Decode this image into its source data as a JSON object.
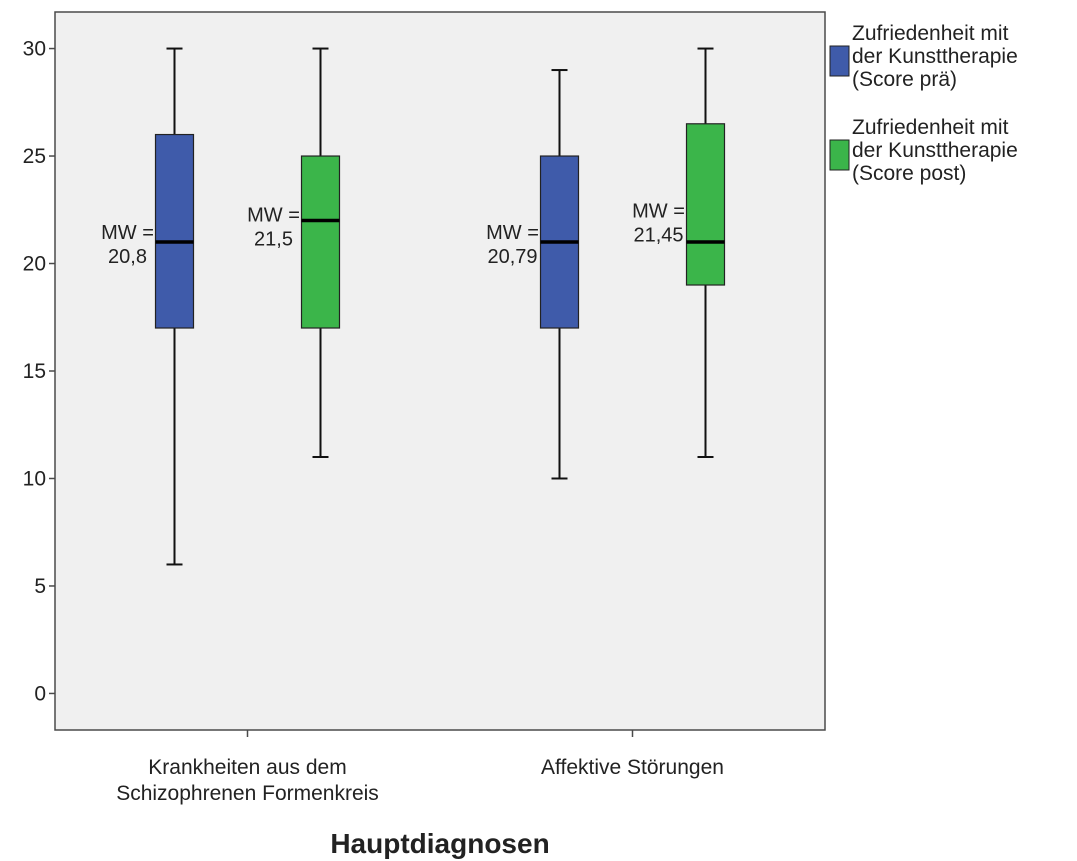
{
  "chart_data": {
    "type": "boxplot",
    "xlabel": "Hauptdiagnosen",
    "ylabel": "",
    "ylim": [
      -1.7,
      31.7
    ],
    "yticks": [
      0,
      5,
      10,
      15,
      20,
      25,
      30
    ],
    "grid": false,
    "legend_position": "right",
    "categories": [
      [
        "Krankheiten aus dem",
        "Schizophrenen Formenkreis"
      ],
      [
        "Affektive Störungen"
      ]
    ],
    "series": [
      {
        "name": [
          "Zufriedenheit mit",
          "der Kunsttherapie",
          "(Score prä)"
        ],
        "color": "#3F5BAA",
        "boxes": [
          {
            "min": 6,
            "q1": 17,
            "median": 21,
            "q3": 26,
            "max": 30
          },
          {
            "min": 10,
            "q1": 17,
            "median": 21,
            "q3": 25,
            "max": 29
          }
        ]
      },
      {
        "name": [
          "Zufriedenheit mit",
          "der Kunsttherapie",
          "(Score post)"
        ],
        "color": "#3BB54A",
        "boxes": [
          {
            "min": 11,
            "q1": 17,
            "median": 22,
            "q3": 25,
            "max": 30
          },
          {
            "min": 11,
            "q1": 19,
            "median": 21,
            "q3": 26.5,
            "max": 30
          }
        ]
      }
    ],
    "annotations": [
      {
        "lines": [
          "MW =",
          "20,8"
        ],
        "category": 0,
        "series": 0,
        "y": 20.5
      },
      {
        "lines": [
          "MW =",
          "21,5"
        ],
        "category": 0,
        "series": 1,
        "y": 21.3
      },
      {
        "lines": [
          "MW =",
          "20,79"
        ],
        "category": 1,
        "series": 0,
        "y": 20.5
      },
      {
        "lines": [
          "MW =",
          "21,45"
        ],
        "category": 1,
        "series": 1,
        "y": 21.5
      }
    ]
  }
}
